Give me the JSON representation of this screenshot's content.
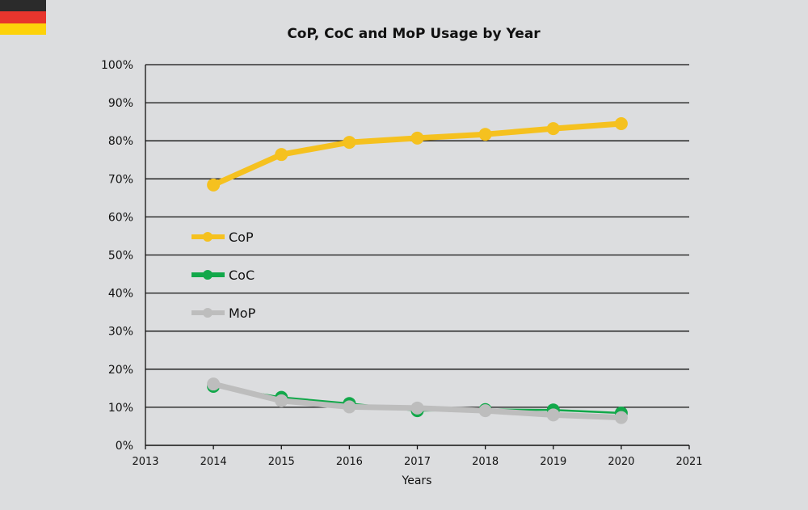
{
  "flag_colors": [
    "#2b2b2b",
    "#e8352d",
    "#fdd20a"
  ],
  "chart_data": {
    "type": "line",
    "title": "CoP, CoC and MoP Usage by Year",
    "xlabel": "Years",
    "ylabel": "",
    "xlim": [
      2013,
      2021
    ],
    "ylim": [
      0,
      100
    ],
    "x_ticks": [
      "2013",
      "2014",
      "2015",
      "2016",
      "2017",
      "2018",
      "2019",
      "2020",
      "2021"
    ],
    "y_ticks": [
      "0%",
      "10%",
      "20%",
      "30%",
      "40%",
      "50%",
      "60%",
      "70%",
      "80%",
      "90%",
      "100%"
    ],
    "grid": true,
    "legend_position": "left-middle",
    "x": [
      2014,
      2015,
      2016,
      2017,
      2018,
      2019,
      2020
    ],
    "series": [
      {
        "name": "CoP",
        "color": "#f5c11f",
        "values": [
          68.4,
          76.4,
          79.6,
          80.7,
          81.7,
          83.2,
          84.5
        ]
      },
      {
        "name": "CoC",
        "color": "#12a84a",
        "values": [
          15.5,
          12.6,
          11.0,
          9.1,
          9.4,
          9.3,
          8.5
        ]
      },
      {
        "name": "MoP",
        "color": "#bdbdbd",
        "values": [
          16.1,
          11.7,
          10.1,
          9.8,
          9.1,
          8.0,
          7.3
        ]
      }
    ]
  }
}
